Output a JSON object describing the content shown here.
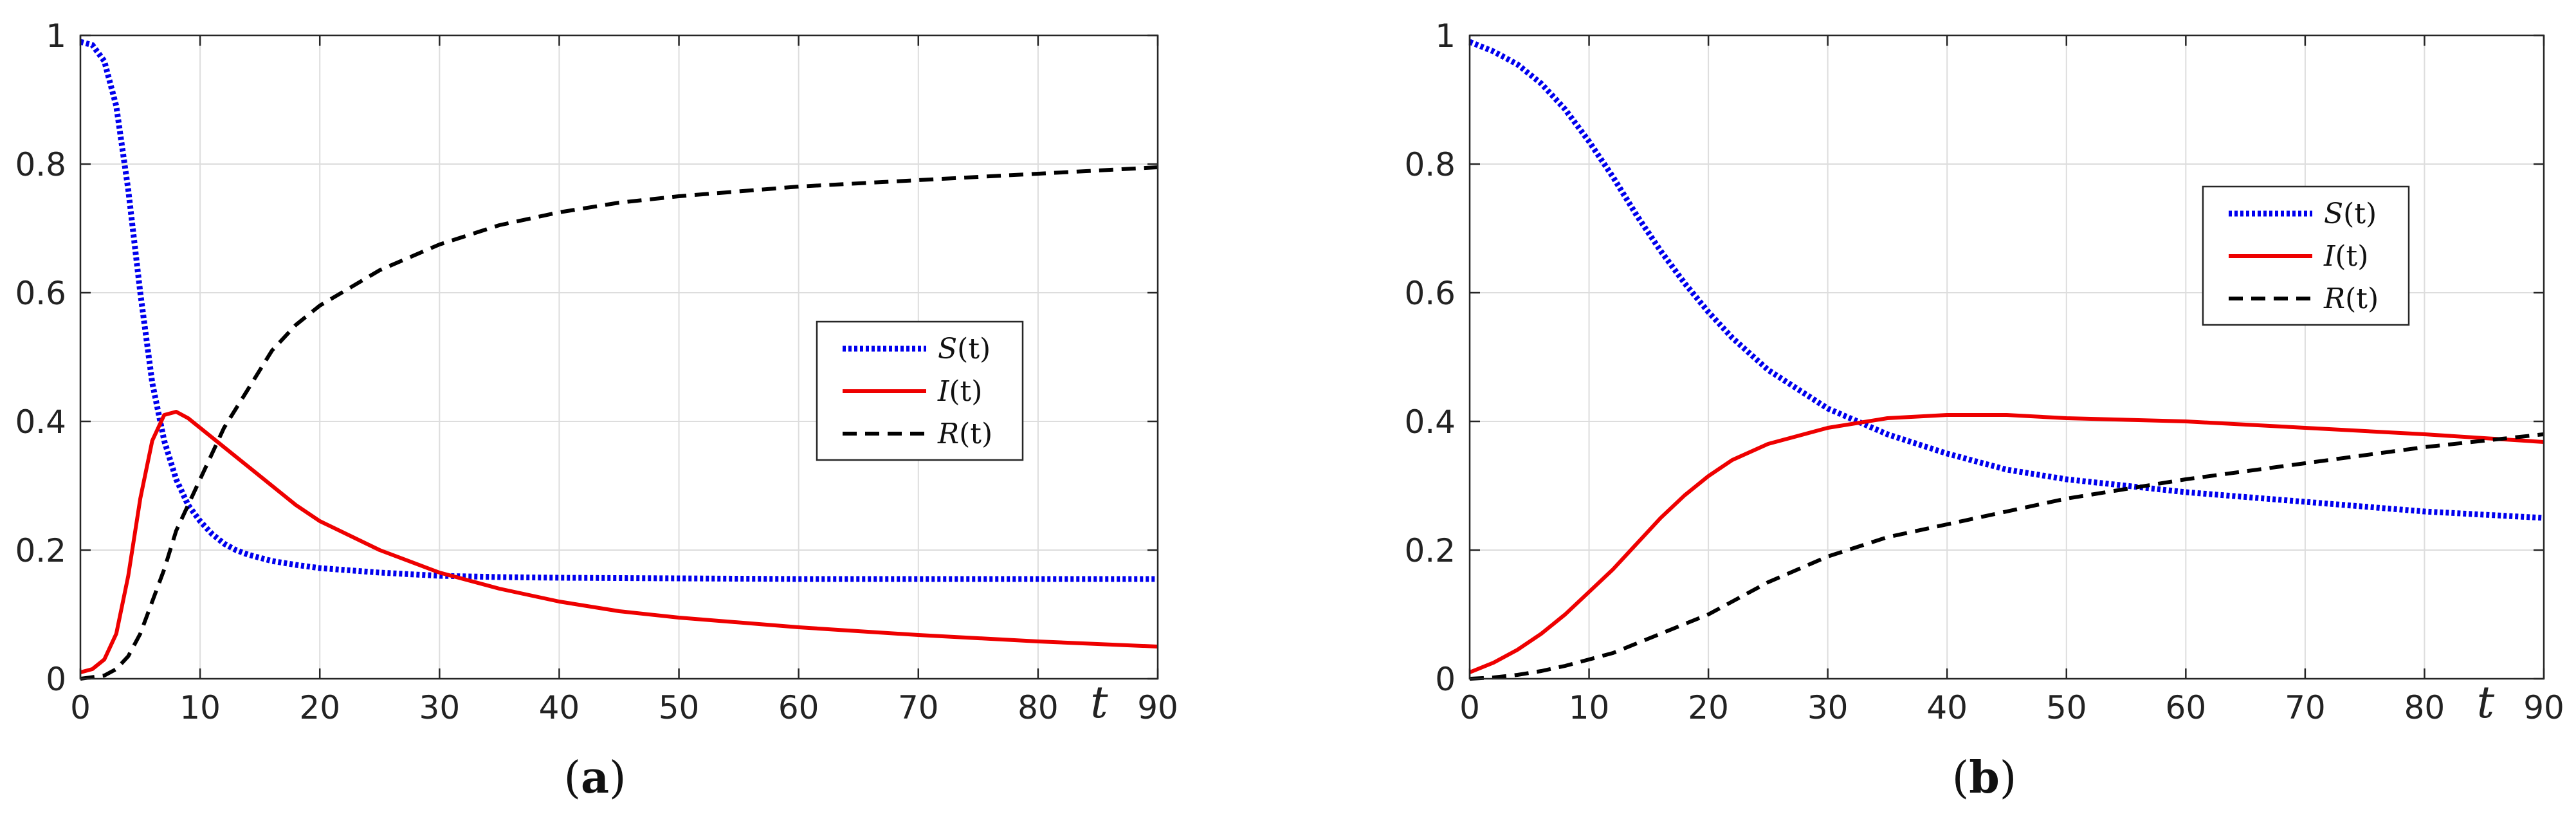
{
  "chart_data": [
    {
      "type": "line",
      "panel": "a",
      "caption": {
        "open": "(",
        "letter": "a",
        "close": ")"
      },
      "xlabel": "t",
      "xlim": [
        0,
        90
      ],
      "ylim": [
        0,
        1
      ],
      "xticks": [
        0,
        10,
        20,
        30,
        40,
        50,
        60,
        70,
        80,
        90
      ],
      "yticks": [
        0,
        0.2,
        0.4,
        0.6,
        0.8,
        1
      ],
      "ytick_labels": [
        "0",
        "0.2",
        "0.4",
        "0.6",
        "0.8",
        "1"
      ],
      "grid": true,
      "legend_position": "right-middle",
      "series": [
        {
          "name": "S",
          "label_fn": "S",
          "label_arg": "(t)",
          "color": "#0000ee",
          "style": "dotted",
          "x": [
            0,
            1,
            2,
            3,
            4,
            5,
            6,
            7,
            8,
            9,
            10,
            11,
            12,
            13,
            14,
            16,
            18,
            20,
            25,
            30,
            35,
            40,
            50,
            60,
            70,
            80,
            90
          ],
          "y": [
            0.99,
            0.985,
            0.96,
            0.89,
            0.76,
            0.6,
            0.46,
            0.37,
            0.31,
            0.27,
            0.245,
            0.225,
            0.21,
            0.2,
            0.193,
            0.183,
            0.177,
            0.172,
            0.165,
            0.16,
            0.158,
            0.157,
            0.156,
            0.155,
            0.155,
            0.155,
            0.155
          ]
        },
        {
          "name": "I",
          "label_fn": "I",
          "label_arg": "(t)",
          "color": "#ee0000",
          "style": "solid",
          "x": [
            0,
            1,
            2,
            3,
            4,
            5,
            6,
            7,
            8,
            9,
            10,
            12,
            14,
            16,
            18,
            20,
            25,
            30,
            35,
            40,
            45,
            50,
            60,
            70,
            80,
            90
          ],
          "y": [
            0.01,
            0.015,
            0.03,
            0.07,
            0.16,
            0.28,
            0.37,
            0.41,
            0.415,
            0.405,
            0.39,
            0.36,
            0.33,
            0.3,
            0.27,
            0.245,
            0.2,
            0.165,
            0.14,
            0.12,
            0.105,
            0.095,
            0.08,
            0.068,
            0.058,
            0.05
          ]
        },
        {
          "name": "R",
          "label_fn": "R",
          "label_arg": "(t)",
          "color": "#000000",
          "style": "dashed",
          "x": [
            0,
            2,
            3,
            4,
            5,
            6,
            7,
            8,
            9,
            10,
            11,
            12,
            14,
            16,
            18,
            20,
            25,
            30,
            35,
            40,
            45,
            50,
            60,
            70,
            80,
            90
          ],
          "y": [
            0,
            0.005,
            0.015,
            0.035,
            0.07,
            0.12,
            0.17,
            0.23,
            0.27,
            0.31,
            0.35,
            0.39,
            0.45,
            0.51,
            0.55,
            0.58,
            0.635,
            0.675,
            0.705,
            0.725,
            0.74,
            0.75,
            0.765,
            0.775,
            0.785,
            0.795
          ]
        }
      ]
    },
    {
      "type": "line",
      "panel": "b",
      "caption": {
        "open": "(",
        "letter": "b",
        "close": ")"
      },
      "xlabel": "t",
      "xlim": [
        0,
        90
      ],
      "ylim": [
        0,
        1
      ],
      "xticks": [
        0,
        10,
        20,
        30,
        40,
        50,
        60,
        70,
        80,
        90
      ],
      "yticks": [
        0,
        0.2,
        0.4,
        0.6,
        0.8,
        1
      ],
      "ytick_labels": [
        "0",
        "0.2",
        "0.4",
        "0.6",
        "0.8",
        "1"
      ],
      "grid": true,
      "legend_position": "top-right",
      "series": [
        {
          "name": "S",
          "label_fn": "S",
          "label_arg": "(t)",
          "color": "#0000ee",
          "style": "dotted",
          "x": [
            0,
            2,
            4,
            6,
            8,
            10,
            12,
            14,
            16,
            18,
            20,
            22,
            25,
            30,
            35,
            40,
            45,
            50,
            60,
            70,
            80,
            90
          ],
          "y": [
            0.99,
            0.975,
            0.955,
            0.925,
            0.885,
            0.835,
            0.78,
            0.72,
            0.665,
            0.615,
            0.57,
            0.53,
            0.48,
            0.42,
            0.38,
            0.35,
            0.325,
            0.31,
            0.29,
            0.275,
            0.26,
            0.25
          ]
        },
        {
          "name": "I",
          "label_fn": "I",
          "label_arg": "(t)",
          "color": "#ee0000",
          "style": "solid",
          "x": [
            0,
            2,
            4,
            6,
            8,
            10,
            12,
            14,
            16,
            18,
            20,
            22,
            25,
            30,
            35,
            40,
            45,
            50,
            60,
            70,
            80,
            90
          ],
          "y": [
            0.01,
            0.025,
            0.045,
            0.07,
            0.1,
            0.135,
            0.17,
            0.21,
            0.25,
            0.285,
            0.315,
            0.34,
            0.365,
            0.39,
            0.405,
            0.41,
            0.41,
            0.405,
            0.4,
            0.39,
            0.38,
            0.368
          ]
        },
        {
          "name": "R",
          "label_fn": "R",
          "label_arg": "(t)",
          "color": "#000000",
          "style": "dashed",
          "x": [
            0,
            2,
            4,
            6,
            8,
            10,
            12,
            14,
            16,
            18,
            20,
            25,
            30,
            35,
            40,
            45,
            50,
            60,
            70,
            80,
            90
          ],
          "y": [
            0,
            0.002,
            0.006,
            0.012,
            0.02,
            0.03,
            0.04,
            0.055,
            0.07,
            0.085,
            0.1,
            0.15,
            0.19,
            0.22,
            0.24,
            0.26,
            0.28,
            0.31,
            0.335,
            0.36,
            0.38
          ]
        }
      ]
    }
  ]
}
